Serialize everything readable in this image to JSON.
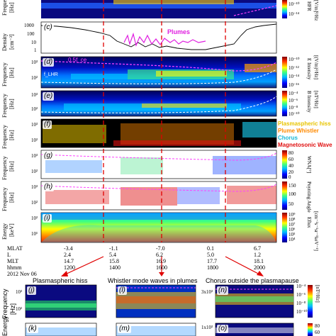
{
  "panels_top": [
    {
      "letter": "",
      "ylabel": "Freque",
      "unit": "[Hz]",
      "cbar_label": "HFR",
      "cbar_unit": "[V/m]²/Hz",
      "cbar_ticks": [
        "10⁻¹⁰",
        "10⁻¹⁴"
      ]
    },
    {
      "letter": "(c)",
      "ylabel": "Density",
      "unit": "[cm⁻³]",
      "ticks": [
        "1000",
        "100",
        "10",
        "1"
      ],
      "annotation": "Plumes"
    },
    {
      "letter": "(d)",
      "ylabel": "Frequency",
      "unit": "[Hz]",
      "ticks": [
        "10³",
        "10²"
      ],
      "annotation": "0.5f_ce",
      "annotation2": "f_LHR",
      "cbar_label": "E Intensity",
      "cbar_unit": "[(V/m)²/Hz]",
      "cbar_ticks": [
        "10⁻¹⁰",
        "10⁻¹²",
        "10⁻¹⁴",
        "10⁻¹⁶"
      ]
    },
    {
      "letter": "(e)",
      "ylabel": "Frequency",
      "unit": "[Hz]",
      "ticks": [
        "10³",
        "10²"
      ],
      "cbar_label": "B Intensity",
      "cbar_unit": "[nT²/Hz]",
      "cbar_ticks": [
        "10⁻⁴",
        "10⁻⁶",
        "10⁻⁸",
        "10⁻¹⁰"
      ]
    },
    {
      "letter": "(f)",
      "ylabel": "Frequency",
      "unit": "[Hz]",
      "ticks": [
        "10³",
        "10²"
      ]
    },
    {
      "letter": "(g)",
      "ylabel": "Frequency",
      "unit": "[Hz]",
      "ticks": [
        "10³",
        "10²"
      ],
      "cbar_label": "WNA[°]",
      "cbar_ticks": [
        "80",
        "60",
        "40",
        "20",
        "0"
      ]
    },
    {
      "letter": "(h)",
      "ylabel": "Frequency",
      "unit": "[Hz]",
      "ticks": [
        "10³",
        "10²"
      ],
      "cbar_label": "Poynting Angle",
      "cbar_ticks": [
        "150",
        "100",
        "50"
      ]
    },
    {
      "letter": "(i)",
      "ylabel": "Energy",
      "unit": "[keV]",
      "ticks": [
        "10²",
        "10¹"
      ],
      "cbar_label": "Eflux",
      "cbar_unit": "[cm⁻²s⁻¹sr⁻¹keV⁻¹]",
      "cbar_ticks": [
        "10⁹",
        "10⁸",
        "10⁷",
        "10⁶",
        "10⁵",
        "10⁴"
      ]
    }
  ],
  "legend": [
    {
      "text": "Plasmaspheric hiss",
      "color": "#e8c400"
    },
    {
      "text": "Plume Whistler",
      "color": "#ff8a00"
    },
    {
      "text": "Chorus",
      "color": "#17b7d6"
    },
    {
      "text": "Magnetosonic Wave",
      "color": "#e01010"
    }
  ],
  "axis": {
    "row_labels": [
      "MLAT",
      "L",
      "MLT",
      "hhmm",
      "2012 Nov 06"
    ],
    "columns": [
      {
        "MLAT": "-3.4",
        "L": "2.4",
        "MLT": "14.7",
        "hhmm": "1200"
      },
      {
        "MLAT": "-1.1",
        "L": "5.4",
        "MLT": "15.8",
        "hhmm": "1400"
      },
      {
        "MLAT": "-7.0",
        "L": "6.2",
        "MLT": "16.9",
        "hhmm": "1600"
      },
      {
        "MLAT": "0.1",
        "L": "5.0",
        "MLT": "17.7",
        "hhmm": "1800"
      },
      {
        "MLAT": "6.7",
        "L": "1.2",
        "MLT": "18.1",
        "hhmm": "2000"
      }
    ]
  },
  "bottom": {
    "titles": [
      "Plasmaspheric hiss",
      "Whistler mode waves in plumes",
      "Chorus outside the plasmapause"
    ],
    "letters": [
      "(j)",
      "(k)",
      "(l)",
      "(m)",
      "(n)",
      "(o)"
    ],
    "ylabel_top": "Frequency",
    "ylabel_bottom": "Energy",
    "unit": "[Hz]",
    "ticks_j": [
      "10³",
      "10²"
    ],
    "ticks_n": [
      "3x10³",
      "1x10³"
    ],
    "cbar_ticks": [
      "10⁻⁴",
      "10⁻⁶",
      "10⁻⁸",
      "10⁻¹⁰"
    ],
    "cbar_unit": "[nT²/Hz]",
    "cbar2_ticks": [
      "80",
      "60"
    ]
  }
}
